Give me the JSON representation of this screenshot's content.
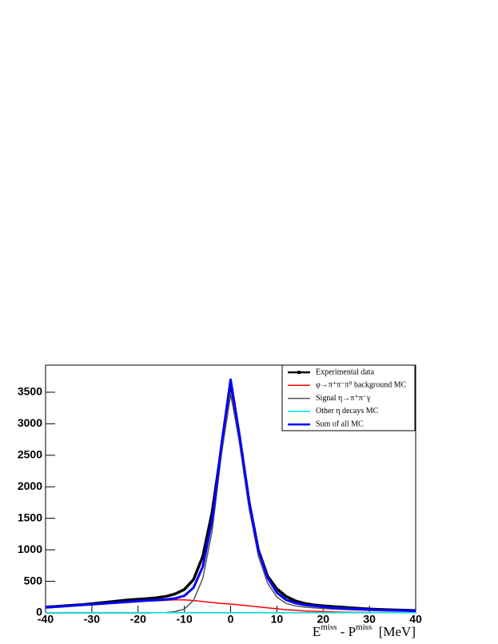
{
  "chart_data": {
    "type": "line",
    "x_label": [
      "E",
      "miss",
      " - P",
      "miss",
      "  [MeV]"
    ],
    "x": [
      -40,
      -38,
      -36,
      -34,
      -32,
      -30,
      -28,
      -26,
      -24,
      -22,
      -20,
      -18,
      -16,
      -14,
      -12,
      -10,
      -8,
      -6,
      -4,
      -2,
      0,
      2,
      4,
      6,
      8,
      10,
      12,
      14,
      16,
      18,
      20,
      22,
      24,
      26,
      28,
      30,
      32,
      34,
      36,
      38,
      40
    ],
    "series": [
      {
        "name": "Experimental data",
        "color": "#000000",
        "values": [
          90,
          100,
          110,
          120,
          130,
          145,
          160,
          175,
          190,
          205,
          215,
          225,
          240,
          260,
          300,
          370,
          530,
          900,
          1600,
          2600,
          3550,
          2750,
          1750,
          1000,
          580,
          380,
          260,
          190,
          150,
          125,
          110,
          100,
          90,
          80,
          70,
          60,
          55,
          50,
          45,
          40,
          35
        ]
      },
      {
        "name": "φ→π⁺π⁻π⁰ background MC",
        "color": "#ff0000",
        "values": [
          80,
          90,
          100,
          110,
          120,
          130,
          140,
          150,
          160,
          170,
          180,
          190,
          195,
          200,
          205,
          205,
          195,
          180,
          165,
          150,
          140,
          125,
          110,
          95,
          80,
          65,
          50,
          40,
          30,
          25,
          20,
          15,
          12,
          10,
          8,
          6,
          5,
          4,
          3,
          2,
          2
        ]
      },
      {
        "name": "Signal η→π⁺π⁻γ",
        "color": "#555555",
        "values": [
          0,
          0,
          0,
          0,
          0,
          0,
          0,
          0,
          0,
          0,
          0,
          0,
          2,
          5,
          20,
          60,
          200,
          550,
          1300,
          2500,
          3500,
          2650,
          1650,
          900,
          470,
          250,
          150,
          110,
          90,
          80,
          70,
          60,
          55,
          50,
          45,
          40,
          35,
          32,
          30,
          28,
          25
        ]
      },
      {
        "name": "Other η decays MC",
        "color": "#00e5e5",
        "values": [
          5,
          5,
          5,
          5,
          5,
          5,
          5,
          5,
          5,
          5,
          5,
          5,
          5,
          5,
          5,
          5,
          5,
          5,
          5,
          5,
          5,
          5,
          5,
          5,
          5,
          5,
          5,
          5,
          5,
          5,
          5,
          5,
          5,
          5,
          5,
          5,
          5,
          5,
          5,
          5,
          5
        ]
      },
      {
        "name": "Sum of all MC",
        "color": "#0000ff",
        "values": [
          85,
          95,
          105,
          115,
          125,
          135,
          145,
          155,
          165,
          175,
          185,
          195,
          202,
          210,
          230,
          270,
          400,
          735,
          1470,
          2655,
          3700,
          2780,
          1765,
          1000,
          555,
          320,
          205,
          155,
          125,
          110,
          95,
          80,
          72,
          65,
          58,
          51,
          45,
          41,
          38,
          35,
          32
        ]
      }
    ],
    "xlim": [
      -40,
      40
    ],
    "ylim": [
      0,
      3930
    ],
    "xticks": [
      -40,
      -30,
      -20,
      -10,
      0,
      10,
      20,
      30,
      40
    ],
    "yticks": [
      0,
      500,
      1000,
      1500,
      2000,
      2500,
      3000,
      3500
    ],
    "legend": "top-right"
  }
}
